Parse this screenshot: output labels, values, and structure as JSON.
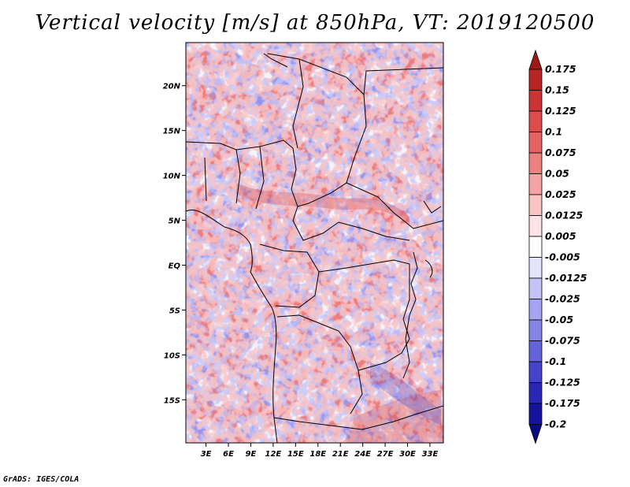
{
  "title": "Vertical velocity [m/s] at 850hPa, VT: 2019120500",
  "footer": "GrADS: IGES/COLA",
  "map": {
    "lon_labels": [
      "3E",
      "6E",
      "9E",
      "12E",
      "15E",
      "18E",
      "21E",
      "24E",
      "27E",
      "30E",
      "33E"
    ],
    "lat_labels": [
      "20N",
      "15N",
      "10N",
      "5N",
      "EQ",
      "5S",
      "10S",
      "15S"
    ],
    "lon_values": [
      3,
      6,
      9,
      12,
      15,
      18,
      21,
      24,
      27,
      30,
      33
    ],
    "lat_values": [
      20,
      15,
      10,
      5,
      0,
      -5,
      -10,
      -15
    ],
    "lon_range": [
      0.3,
      34.8
    ],
    "lat_range": [
      -19.8,
      24.8
    ]
  },
  "colorbar": {
    "labels": [
      "0.175",
      "0.15",
      "0.125",
      "0.1",
      "0.075",
      "0.05",
      "0.025",
      "0.0125",
      "0.005",
      "-0.005",
      "-0.0125",
      "-0.025",
      "-0.05",
      "-0.075",
      "-0.1",
      "-0.125",
      "-0.175",
      "-0.2"
    ],
    "colors": [
      "#a01818",
      "#b82424",
      "#cc3434",
      "#dc4c4c",
      "#e46464",
      "#ec8080",
      "#f4a4a4",
      "#f8c4c4",
      "#fce4e4",
      "#ffffff",
      "#e4e4fc",
      "#c4c4f4",
      "#a4a4f0",
      "#8484e4",
      "#6464d8",
      "#4444c8",
      "#2828b4",
      "#14149c",
      "#0a0a84"
    ]
  }
}
